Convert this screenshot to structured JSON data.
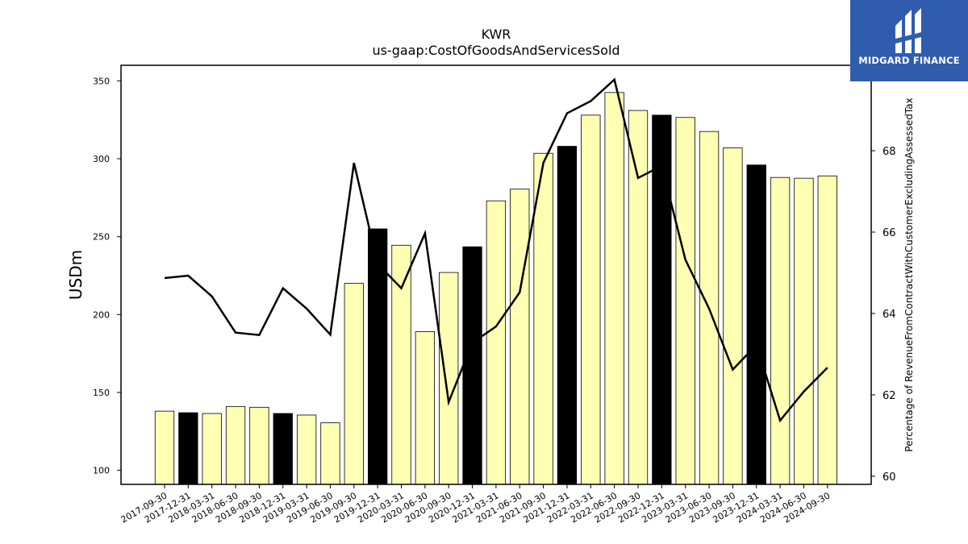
{
  "chart_data": {
    "type": "bar",
    "title": "KWR",
    "subtitle": "us-gaap:CostOfGoodsAndServicesSold",
    "ylabel": "USDm",
    "y2label": "Percentage of RevenueFromContractWithCustomerExcludingAssessedTax",
    "ylim": [
      91,
      360
    ],
    "y2lim": [
      59.8,
      70.1
    ],
    "yticks": [
      100,
      150,
      200,
      250,
      300,
      350
    ],
    "y2ticks": [
      60,
      62,
      64,
      66,
      68
    ],
    "categories": [
      "2017-09-30",
      "2017-12-31",
      "2018-03-31",
      "2018-06-30",
      "2018-09-30",
      "2018-12-31",
      "2019-03-31",
      "2019-06-30",
      "2019-09-30",
      "2019-12-31",
      "2020-03-31",
      "2020-06-30",
      "2020-09-30",
      "2020-12-31",
      "2021-03-31",
      "2021-06-30",
      "2021-09-30",
      "2021-12-31",
      "2022-03-31",
      "2022-06-30",
      "2022-09-30",
      "2022-12-31",
      "2023-03-31",
      "2023-06-30",
      "2023-09-30",
      "2023-12-31",
      "2024-03-31",
      "2024-06-30",
      "2024-09-30"
    ],
    "series": [
      {
        "kind": "bar",
        "values": [
          138,
          137,
          136.5,
          141,
          140.5,
          136.5,
          135.5,
          130.5,
          220,
          255,
          244.5,
          189,
          227,
          243.5,
          273,
          280.5,
          303.5,
          308,
          328,
          342.5,
          331,
          328,
          326.5,
          317.5,
          307,
          296,
          288,
          287.5,
          289
        ],
        "highlight": [
          false,
          true,
          false,
          false,
          false,
          true,
          false,
          false,
          false,
          true,
          false,
          false,
          false,
          true,
          false,
          false,
          false,
          true,
          false,
          false,
          false,
          true,
          false,
          false,
          false,
          true,
          false,
          false,
          false
        ]
      },
      {
        "kind": "line",
        "axis": "right",
        "values": [
          64.87,
          64.93,
          64.42,
          63.53,
          63.47,
          64.62,
          64.12,
          63.48,
          67.7,
          65.22,
          64.62,
          65.97,
          61.82,
          63.28,
          63.68,
          64.52,
          67.7,
          68.92,
          69.22,
          69.75,
          67.33,
          67.63,
          65.32,
          64.12,
          62.62,
          63.23,
          61.37,
          62.08,
          62.67
        ]
      }
    ],
    "colors": {
      "bar": "#ffffb3",
      "highlight_bar": "#000000",
      "bar_edge": "#000000",
      "line": "#000000"
    },
    "grid": false,
    "legend": "none"
  },
  "logo": {
    "text": "MIDGARD FINANCE",
    "background": "#2f5cad",
    "icon": "midgard-logo-icon"
  }
}
